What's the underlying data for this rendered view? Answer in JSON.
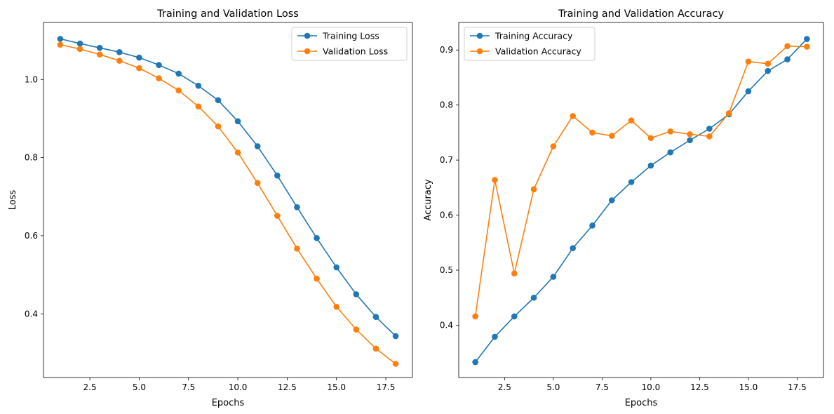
{
  "chart_data": [
    {
      "type": "line",
      "title": "Training and Validation Loss",
      "xlabel": "Epochs",
      "ylabel": "Loss",
      "xlim": [
        0.15,
        18.85
      ],
      "ylim": [
        0.237,
        1.146
      ],
      "xticks": [
        2.5,
        5.0,
        7.5,
        10.0,
        12.5,
        15.0,
        17.5
      ],
      "xtick_labels": [
        "2.5",
        "5.0",
        "7.5",
        "10.0",
        "12.5",
        "15.0",
        "17.5"
      ],
      "yticks": [
        0.4,
        0.6,
        0.8,
        1.0
      ],
      "ytick_labels": [
        "0.4",
        "0.6",
        "0.8",
        "1.0"
      ],
      "legend_position": "top-right",
      "x": [
        1,
        2,
        3,
        4,
        5,
        6,
        7,
        8,
        9,
        10,
        11,
        12,
        13,
        14,
        15,
        16,
        17,
        18
      ],
      "series": [
        {
          "name": "Training Loss",
          "color": "#1f77b4",
          "values": [
            1.104,
            1.092,
            1.081,
            1.07,
            1.056,
            1.037,
            1.015,
            0.984,
            0.947,
            0.893,
            0.829,
            0.754,
            0.673,
            0.594,
            0.519,
            0.45,
            0.392,
            0.343
          ]
        },
        {
          "name": "Validation Loss",
          "color": "#ff7f0e",
          "values": [
            1.089,
            1.078,
            1.064,
            1.048,
            1.029,
            1.003,
            0.972,
            0.931,
            0.88,
            0.813,
            0.735,
            0.651,
            0.567,
            0.49,
            0.418,
            0.36,
            0.311,
            0.272
          ]
        }
      ]
    },
    {
      "type": "line",
      "title": "Training and Validation Accuracy",
      "xlabel": "Epochs",
      "ylabel": "Accuracy",
      "xlim": [
        0.15,
        18.85
      ],
      "ylim": [
        0.305,
        0.95
      ],
      "xticks": [
        2.5,
        5.0,
        7.5,
        10.0,
        12.5,
        15.0,
        17.5
      ],
      "xtick_labels": [
        "2.5",
        "5.0",
        "7.5",
        "10.0",
        "12.5",
        "15.0",
        "17.5"
      ],
      "yticks": [
        0.4,
        0.5,
        0.6,
        0.7,
        0.8,
        0.9
      ],
      "ytick_labels": [
        "0.4",
        "0.5",
        "0.6",
        "0.7",
        "0.8",
        "0.9"
      ],
      "legend_position": "top-left",
      "x": [
        1,
        2,
        3,
        4,
        5,
        6,
        7,
        8,
        9,
        10,
        11,
        12,
        13,
        14,
        15,
        16,
        17,
        18
      ],
      "series": [
        {
          "name": "Training Accuracy",
          "color": "#1f77b4",
          "values": [
            0.333,
            0.379,
            0.416,
            0.45,
            0.488,
            0.54,
            0.581,
            0.627,
            0.66,
            0.69,
            0.714,
            0.736,
            0.757,
            0.783,
            0.825,
            0.862,
            0.883,
            0.92
          ]
        },
        {
          "name": "Validation Accuracy",
          "color": "#ff7f0e",
          "values": [
            0.416,
            0.664,
            0.494,
            0.647,
            0.725,
            0.78,
            0.75,
            0.744,
            0.772,
            0.74,
            0.752,
            0.747,
            0.743,
            0.785,
            0.879,
            0.875,
            0.907,
            0.906
          ]
        }
      ]
    }
  ]
}
